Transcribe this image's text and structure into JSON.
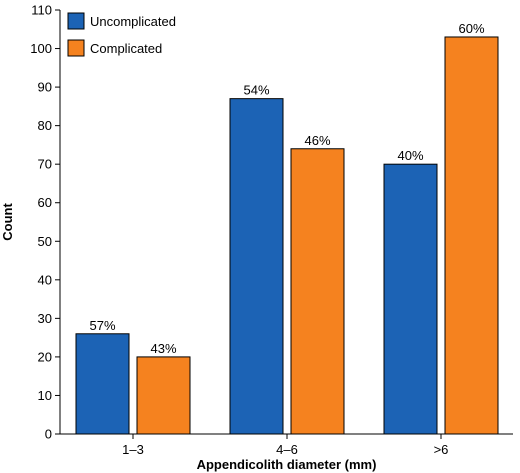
{
  "chart_data": {
    "type": "bar",
    "title": "",
    "xlabel": "Appendicolith diameter (mm)",
    "ylabel": "Count",
    "ylim": [
      0,
      110
    ],
    "yticks": [
      0,
      10,
      20,
      30,
      40,
      50,
      60,
      70,
      80,
      90,
      100,
      110
    ],
    "grid": false,
    "legend": "top-left",
    "categories": [
      "1–3",
      "4–6",
      ">6"
    ],
    "series": [
      {
        "name": "Uncomplicated",
        "color": "#1c63b5",
        "values": [
          26,
          87,
          70
        ],
        "labels": [
          "57%",
          "54%",
          "40%"
        ]
      },
      {
        "name": "Complicated",
        "color": "#f5821f",
        "values": [
          20,
          74,
          103
        ],
        "labels": [
          "43%",
          "46%",
          "60%"
        ]
      }
    ]
  }
}
